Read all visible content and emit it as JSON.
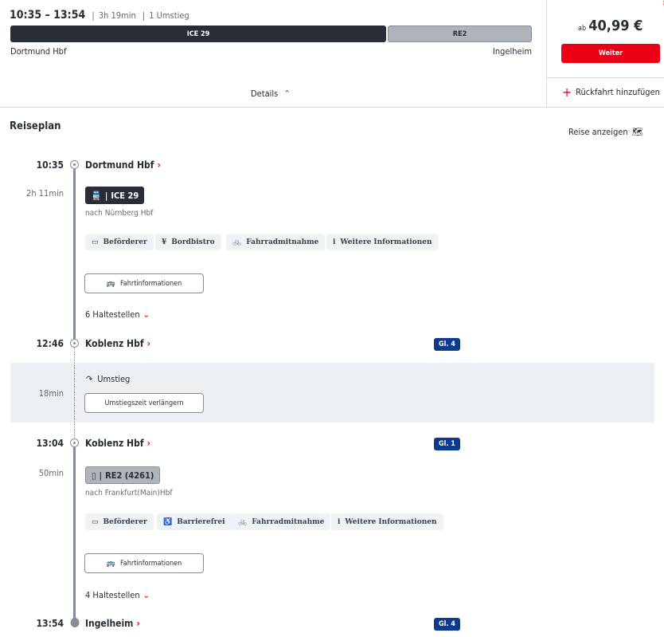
{
  "summary": {
    "times": "10:35 – 13:54",
    "duration": "3h 19min",
    "transfers": "1 Umstieg",
    "segments": [
      {
        "label": "ICE 29",
        "color": "#282d37"
      },
      {
        "label": "RE2",
        "color": "#afb4bb"
      }
    ],
    "origin": "Dortmund Hbf",
    "destination": "Ingelheim",
    "details": "Details"
  },
  "price": {
    "prefix": "ab",
    "amount": "40,99 €",
    "continue": "Weiter",
    "return": "Rückfahrt hinzufügen"
  },
  "plan": {
    "title": "Reiseplan",
    "show_trip": "Reise anzeigen",
    "legs": [
      {
        "dep_time": "10:35",
        "dep_station": "Dortmund Hbf",
        "duration": "2h 11min",
        "train": "ICE 29",
        "direction": "nach Nürnberg Hbf",
        "chips": [
          "Beförderer",
          "Bordbistro",
          "Fahrradmitnahme",
          "Weitere Informationen"
        ],
        "info": "Fahrtinformationen",
        "stops": "6 Haltestellen",
        "arr_time": "12:46",
        "arr_station": "Koblenz Hbf",
        "arr_platform": "Gl. 4"
      },
      {
        "dep_time": "13:04",
        "dep_station": "Koblenz Hbf",
        "dep_platform": "Gl. 1",
        "duration": "50min",
        "train": "RE2 (4261)",
        "direction": "nach Frankfurt(Main)Hbf",
        "chips": [
          "Beförderer",
          "Barrierefrei",
          "Fahrradmitnahme",
          "Weitere Informationen"
        ],
        "info": "Fahrtinformationen",
        "stops": "4 Haltestellen",
        "arr_time": "13:54",
        "arr_station": "Ingelheim",
        "arr_platform": "Gl. 4"
      }
    ],
    "transfer": {
      "label": "Umstieg",
      "duration": "18min",
      "button": "Umstiegszeit verlängern"
    }
  },
  "colors": {
    "accent": "#ec0016",
    "platform": "#0c3992"
  }
}
